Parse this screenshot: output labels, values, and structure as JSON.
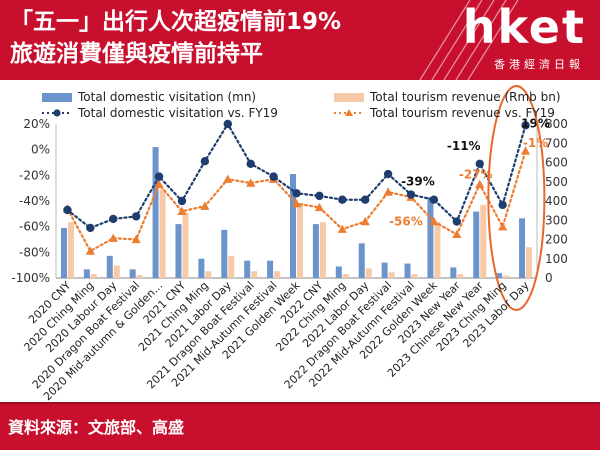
{
  "header": {
    "title_line1": "「五一」出行人次超疫情前19%",
    "title_line2": "旅遊消費僅與疫情前持平",
    "logo": "hket",
    "logo_sub": "香港經濟日報"
  },
  "footer": {
    "source": "資料來源：文旅部、高盛"
  },
  "colors": {
    "brand_red": "#c8102e",
    "visitation_bar": "#6b93cc",
    "revenue_bar": "#f7c9a7",
    "visitation_line": "#1f3e6e",
    "revenue_line": "#ed7d31",
    "highlight_ellipse": "#e7682b"
  },
  "chart_data": {
    "type": "bar",
    "categories": [
      "2020 CNY",
      "2020 Ching Ming",
      "2020 Labour Day",
      "2020 Dragon Boat Festival",
      "2020 Mid-autumn & Golden...",
      "2021 CNY",
      "2021 Ching Ming",
      "2021 Labor Day",
      "2021 Dragon Boat Festival",
      "2021 Mid-Autumn Festival",
      "2021 Golden Week",
      "2022 CNY",
      "2022 Ching Ming",
      "2022 Labor Day",
      "2022 Dragon Boat Festival",
      "2022 Mid-Autumn Festival",
      "2022 Golden Week",
      "2023 New Year",
      "2023 Chinese New Year",
      "2023 Ching Ming",
      "2023 Labor Day"
    ],
    "series": [
      {
        "name": "Total domestic visitation (mn)",
        "type": "bar",
        "axis": "right",
        "values": [
          260,
          45,
          115,
          45,
          680,
          280,
          100,
          250,
          90,
          90,
          540,
          280,
          60,
          180,
          80,
          75,
          420,
          55,
          345,
          25,
          310
        ]
      },
      {
        "name": "Total tourism revenue (Rmb bn)",
        "type": "bar",
        "axis": "right",
        "values": [
          290,
          20,
          65,
          15,
          460,
          340,
          35,
          115,
          35,
          35,
          390,
          290,
          20,
          50,
          30,
          20,
          290,
          20,
          380,
          12,
          160
        ]
      },
      {
        "name": "Total domestic visitation vs. FY19",
        "type": "line",
        "axis": "left",
        "values": [
          -47,
          -61,
          -54,
          -52,
          -21,
          -40,
          -9,
          20,
          -11,
          -21,
          -34,
          -36,
          -39,
          -39,
          -19,
          -35,
          -39,
          -56,
          -11,
          -43,
          19
        ]
      },
      {
        "name": "Total tourism revenue vs. FY19",
        "type": "line",
        "axis": "left",
        "values": [
          -46,
          -79,
          -69,
          -70,
          -27,
          -48,
          -44,
          -23,
          -26,
          -23,
          -42,
          -45,
          -62,
          -56,
          -33,
          -37,
          -56,
          -66,
          -27,
          -60,
          -1
        ]
      }
    ],
    "annotations": [
      {
        "label": "19%",
        "category": "2023 Labor Day"
      },
      {
        "label": "-1%",
        "category": "2023 Labor Day"
      },
      {
        "label": "-11%",
        "category": "2023 Chinese New Year"
      },
      {
        "label": "-27%",
        "category": "2023 Chinese New Year"
      },
      {
        "label": "-39%",
        "category": "2022 Golden Week"
      },
      {
        "label": "-56%",
        "category": "2022 Golden Week"
      }
    ],
    "y_left": {
      "range": [
        -100,
        20
      ],
      "ticks": [
        "20%",
        "0%",
        "-20%",
        "-40%",
        "-60%",
        "-80%",
        "-100%"
      ]
    },
    "y_right": {
      "range": [
        0,
        800
      ],
      "ticks": [
        "0",
        "100",
        "200",
        "300",
        "400",
        "500",
        "600",
        "700",
        "800"
      ]
    },
    "grid": false,
    "legend_position": "top"
  }
}
